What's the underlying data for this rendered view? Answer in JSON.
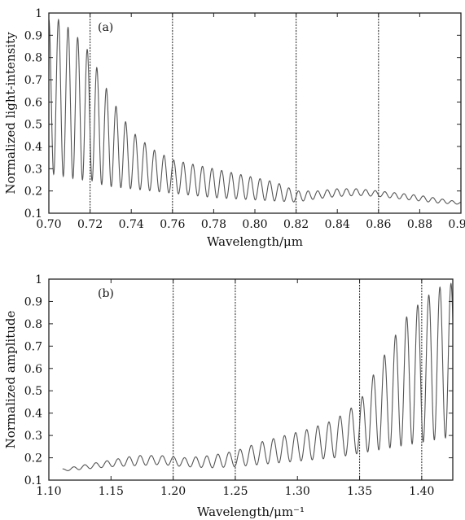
{
  "chart_data": [
    {
      "type": "line",
      "panel_label": "(a)",
      "xlabel": "Wavelength/μm",
      "ylabel": "Normalized light-intensity",
      "xlim": [
        0.7,
        0.9
      ],
      "ylim": [
        0.1,
        1.0
      ],
      "xticks": [
        "0.70",
        "0.72",
        "0.74",
        "0.76",
        "0.78",
        "0.80",
        "0.82",
        "0.84",
        "0.86",
        "0.88",
        "0.90"
      ],
      "yticks": [
        "0.1",
        "0.2",
        "0.3",
        "0.4",
        "0.5",
        "0.6",
        "0.7",
        "0.8",
        "0.9",
        "1"
      ],
      "vlines": [
        0.72,
        0.76,
        0.82,
        0.86
      ],
      "series": [
        {
          "envelope_x": [
            0.7,
            0.705,
            0.71,
            0.715,
            0.72,
            0.725,
            0.73,
            0.74,
            0.75,
            0.76,
            0.77,
            0.78,
            0.79,
            0.8,
            0.81,
            0.82,
            0.83,
            0.84,
            0.85,
            0.86,
            0.87,
            0.88,
            0.89,
            0.9
          ],
          "envelope_upper": [
            0.97,
            0.97,
            0.93,
            0.88,
            0.82,
            0.72,
            0.62,
            0.47,
            0.39,
            0.34,
            0.32,
            0.3,
            0.28,
            0.26,
            0.24,
            0.2,
            0.2,
            0.21,
            0.21,
            0.2,
            0.19,
            0.18,
            0.165,
            0.15
          ],
          "envelope_lower": [
            0.28,
            0.27,
            0.26,
            0.25,
            0.25,
            0.23,
            0.22,
            0.21,
            0.2,
            0.19,
            0.18,
            0.17,
            0.165,
            0.16,
            0.155,
            0.15,
            0.165,
            0.175,
            0.18,
            0.175,
            0.165,
            0.155,
            0.145,
            0.14
          ],
          "fringe_period": 0.00466
        }
      ]
    },
    {
      "type": "line",
      "panel_label": "(b)",
      "xlabel": "Wavelength/μm⁻¹",
      "ylabel": "Normalized amplitude",
      "xlim": [
        1.1,
        1.425
      ],
      "ylim": [
        0.1,
        1.0
      ],
      "xticks": [
        "1.10",
        "1.15",
        "1.20",
        "1.25",
        "1.30",
        "1.35",
        "1.40"
      ],
      "yticks": [
        "0.1",
        "0.2",
        "0.3",
        "0.4",
        "0.5",
        "0.6",
        "0.7",
        "0.8",
        "0.9",
        "1"
      ],
      "vlines": [
        1.2,
        1.25,
        1.35,
        1.4
      ],
      "series": [
        {
          "envelope_x": [
            1.111,
            1.13,
            1.15,
            1.17,
            1.19,
            1.21,
            1.23,
            1.25,
            1.27,
            1.29,
            1.31,
            1.33,
            1.35,
            1.36,
            1.37,
            1.38,
            1.39,
            1.4,
            1.41,
            1.42,
            1.425
          ],
          "envelope_upper": [
            0.15,
            0.17,
            0.19,
            0.21,
            0.21,
            0.2,
            0.21,
            0.23,
            0.27,
            0.3,
            0.33,
            0.37,
            0.45,
            0.56,
            0.66,
            0.76,
            0.85,
            0.9,
            0.95,
            0.98,
            0.98
          ],
          "envelope_lower": [
            0.14,
            0.15,
            0.16,
            0.165,
            0.17,
            0.16,
            0.155,
            0.16,
            0.17,
            0.18,
            0.19,
            0.2,
            0.22,
            0.23,
            0.24,
            0.25,
            0.26,
            0.27,
            0.28,
            0.29,
            0.29
          ],
          "fringe_period": 0.00893
        }
      ]
    }
  ]
}
